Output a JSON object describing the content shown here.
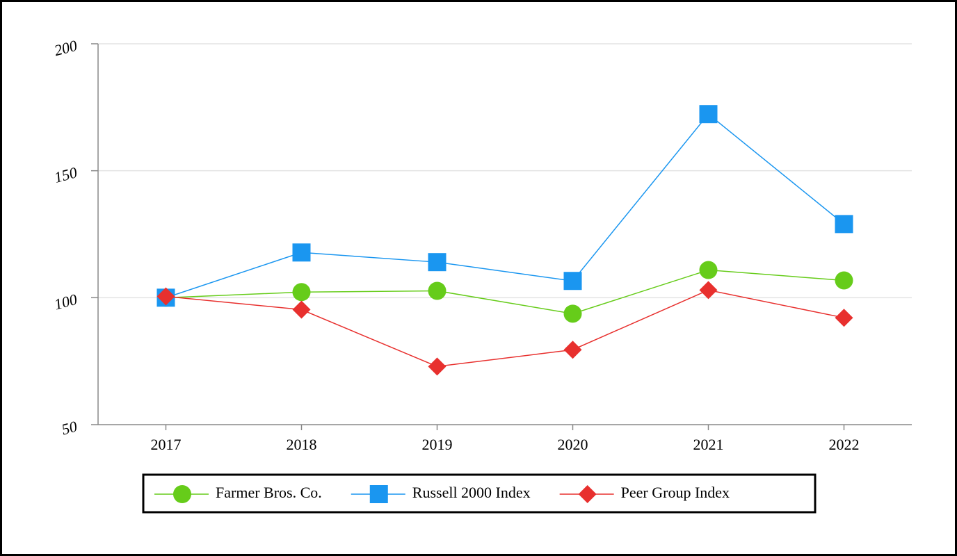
{
  "chart_data": {
    "type": "line",
    "categories": [
      "2017",
      "2018",
      "2019",
      "2020",
      "2021",
      "2022"
    ],
    "series": [
      {
        "name": "Farmer Bros. Co.",
        "color": "#66cc1a",
        "marker": "circle",
        "values": [
          100,
          102.2,
          102.7,
          93.7,
          110.9,
          106.8
        ]
      },
      {
        "name": "Russell 2000 Index",
        "color": "#1a96f0",
        "marker": "square",
        "values": [
          100,
          117.8,
          114.0,
          106.6,
          172.3,
          129.0
        ]
      },
      {
        "name": "Peer Group Index",
        "color": "#e8302e",
        "marker": "diamond",
        "values": [
          100.5,
          95.3,
          72.9,
          79.5,
          103.0,
          92.1
        ]
      }
    ],
    "ylim": [
      50,
      200
    ],
    "yticks": [
      50,
      100,
      150,
      200
    ],
    "grid": true
  }
}
